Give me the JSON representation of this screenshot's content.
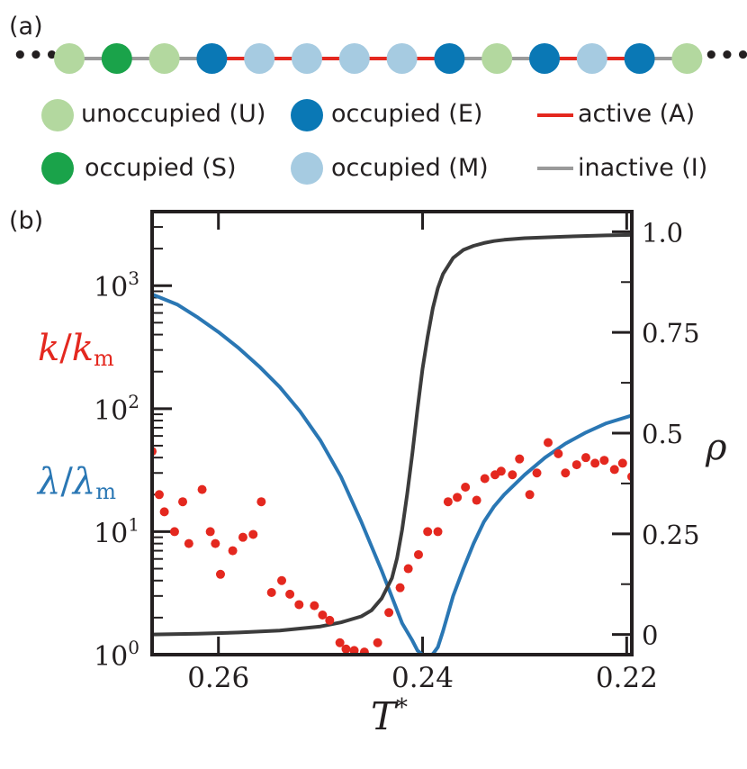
{
  "panel_a_label": "(a)",
  "panel_b_label": "(b)",
  "chain": {
    "ellipsis_left": "•••",
    "ellipsis_right": "•••",
    "sites": [
      "U",
      "S",
      "U",
      "E",
      "M",
      "M",
      "M",
      "M",
      "E",
      "U",
      "E",
      "M",
      "E",
      "U"
    ],
    "bonds": [
      "I",
      "I",
      "I",
      "A",
      "A",
      "A",
      "A",
      "A",
      "I",
      "I",
      "A",
      "A",
      "I"
    ]
  },
  "colors": {
    "U": "#b3d89f",
    "S": "#1aa34a",
    "E": "#0a78b5",
    "M": "#a6cbe1",
    "A": "#e4281f",
    "I": "#9a9a9a",
    "rate": "#e4281f",
    "lambda": "#2a77b4",
    "rho": "#3c3c3c",
    "axis": "#231f20"
  },
  "legend": {
    "unoccupied": "unoccupied (U)",
    "occupied_e": "occupied (E)",
    "active": "active (A)",
    "occupied_s": "occupied (S)",
    "occupied_m": "occupied (M)",
    "inactive": "inactive (I)"
  },
  "chart_data": {
    "type": "line",
    "xlabel": "T*",
    "x_ticks": [
      "0.26",
      "0.24",
      "0.22"
    ],
    "x_tick_values": [
      0.26,
      0.24,
      0.22
    ],
    "xlim": [
      0.2665,
      0.2195
    ],
    "y_left": {
      "scale": "log",
      "ylim": [
        1.0,
        4000
      ],
      "tick_labels": [
        "10^0",
        "10^1",
        "10^2",
        "10^3"
      ],
      "tick_values": [
        1,
        10,
        100,
        1000
      ],
      "labels": [
        "k/k_m",
        "λ/λ_m"
      ]
    },
    "y_right": {
      "label": "ρ",
      "ylim": [
        -0.05,
        1.05
      ],
      "tick_labels": [
        "0",
        "0.25",
        "0.5",
        "0.75",
        "1.0"
      ],
      "tick_values": [
        0,
        0.25,
        0.5,
        0.75,
        1.0
      ]
    },
    "series": [
      {
        "name": "k/k_m",
        "kind": "scatter",
        "axis": "left",
        "x": [
          0.2665,
          0.2658,
          0.2653,
          0.2643,
          0.2635,
          0.2629,
          0.2616,
          0.2608,
          0.2603,
          0.2598,
          0.2586,
          0.2576,
          0.2566,
          0.2558,
          0.2548,
          0.2538,
          0.253,
          0.2521,
          0.2506,
          0.2498,
          0.2491,
          0.2481,
          0.2475,
          0.2467,
          0.2457,
          0.2444,
          0.2433,
          0.2422,
          0.2414,
          0.2404,
          0.2395,
          0.2385,
          0.2375,
          0.2366,
          0.2358,
          0.2347,
          0.2339,
          0.2329,
          0.2323,
          0.2312,
          0.2305,
          0.2295,
          0.2288,
          0.2277,
          0.2267,
          0.226,
          0.2249,
          0.224,
          0.2231,
          0.2222,
          0.2212,
          0.2204,
          0.2195
        ],
        "y": [
          45.0,
          20.0,
          14.5,
          10.0,
          17.5,
          8.0,
          22.0,
          10.0,
          8.0,
          4.5,
          7.0,
          9.0,
          9.5,
          17.5,
          3.2,
          4.0,
          3.1,
          2.55,
          2.5,
          2.1,
          1.9,
          1.25,
          1.11,
          1.08,
          1.05,
          1.25,
          2.2,
          3.5,
          5.0,
          6.5,
          10.0,
          10.0,
          17.5,
          19.0,
          23.0,
          18.0,
          27.0,
          29.0,
          31.0,
          29.0,
          39.0,
          20.0,
          30.0,
          53.0,
          43.0,
          30.0,
          35.0,
          40.0,
          36.0,
          38.0,
          32.0,
          36.0,
          28.0
        ]
      },
      {
        "name": "λ/λ_m",
        "kind": "line",
        "axis": "left",
        "x": [
          0.2665,
          0.264,
          0.262,
          0.26,
          0.258,
          0.256,
          0.254,
          0.252,
          0.25,
          0.248,
          0.246,
          0.244,
          0.242,
          0.241,
          0.2405,
          0.24,
          0.2395,
          0.239,
          0.2385,
          0.238,
          0.237,
          0.236,
          0.235,
          0.234,
          0.233,
          0.232,
          0.23,
          0.228,
          0.226,
          0.224,
          0.222,
          0.2195
        ],
        "y": [
          850,
          700,
          550,
          420,
          310,
          220,
          150,
          95,
          55,
          28,
          12.0,
          4.8,
          1.8,
          1.3,
          1.08,
          1.0,
          0.97,
          1.01,
          1.15,
          1.55,
          3.0,
          5.0,
          8.0,
          12.0,
          16.0,
          20.0,
          29.0,
          40.0,
          52.0,
          64.0,
          76.0,
          88.0
        ]
      },
      {
        "name": "ρ",
        "kind": "line",
        "axis": "right",
        "x": [
          0.2665,
          0.262,
          0.258,
          0.254,
          0.25,
          0.248,
          0.246,
          0.245,
          0.244,
          0.243,
          0.2425,
          0.242,
          0.2415,
          0.241,
          0.2405,
          0.24,
          0.2395,
          0.239,
          0.2385,
          0.238,
          0.237,
          0.236,
          0.235,
          0.234,
          0.233,
          0.232,
          0.23,
          0.226,
          0.222,
          0.2195
        ],
        "y": [
          0.0,
          0.002,
          0.005,
          0.01,
          0.02,
          0.03,
          0.045,
          0.06,
          0.09,
          0.14,
          0.19,
          0.26,
          0.35,
          0.45,
          0.56,
          0.66,
          0.74,
          0.81,
          0.86,
          0.895,
          0.935,
          0.955,
          0.965,
          0.972,
          0.977,
          0.98,
          0.984,
          0.988,
          0.991,
          0.992
        ]
      }
    ]
  }
}
